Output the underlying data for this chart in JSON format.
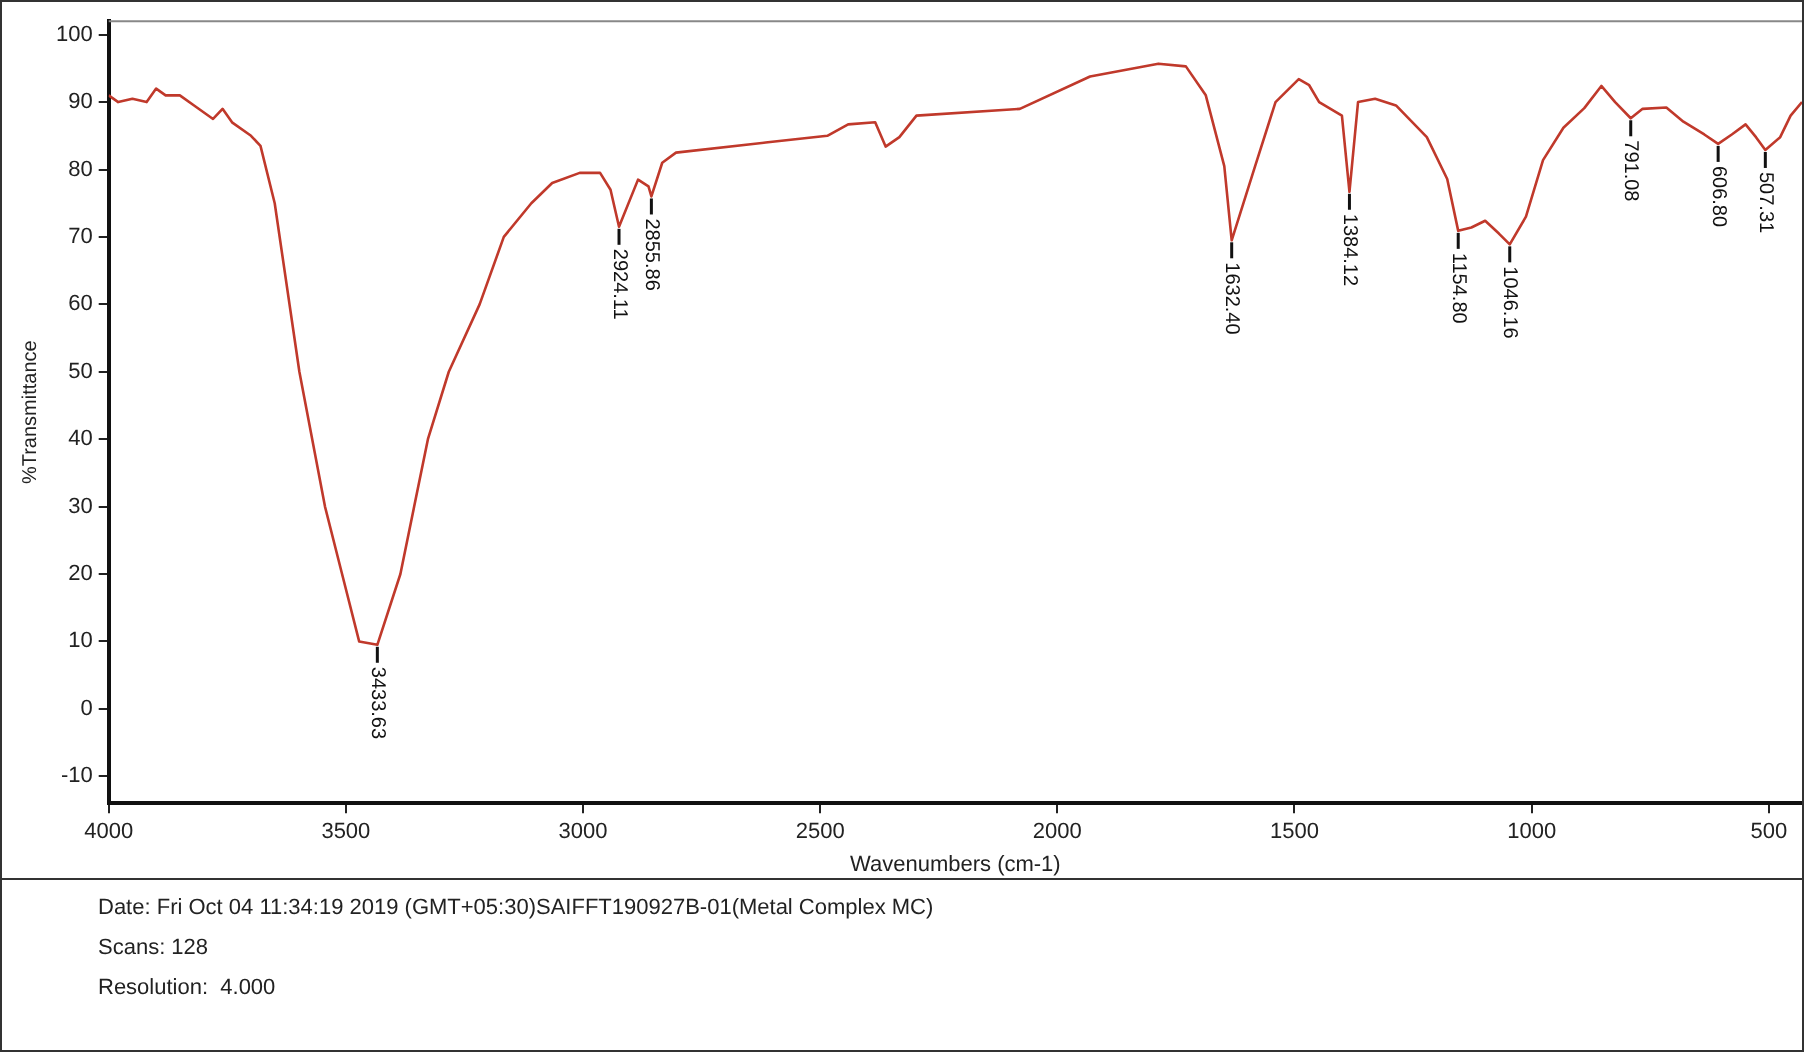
{
  "chart_data": {
    "type": "line",
    "xlabel": "Wavenumbers (cm-1)",
    "ylabel": "%Transmittance",
    "xlim": [
      4000,
      430
    ],
    "xticks": [
      4000,
      3500,
      3000,
      2500,
      2000,
      1500,
      1000,
      500
    ],
    "ylim": [
      -14,
      102
    ],
    "yticks": [
      -10,
      0,
      10,
      20,
      30,
      40,
      50,
      60,
      70,
      80,
      90,
      100
    ],
    "grid": false,
    "legend": false,
    "marker": "none",
    "line_style": "solid",
    "series": [
      {
        "color": "#c0392b",
        "x": [
          4000,
          3980,
          3950,
          3920,
          3900,
          3880,
          3850,
          3820,
          3780,
          3760,
          3740,
          3700,
          3680,
          3650,
          3598,
          3544,
          3508,
          3472,
          3433.63,
          3385,
          3356,
          3327,
          3283,
          3218,
          3167,
          3109,
          3065,
          3007,
          2964,
          2942,
          2924.11,
          2884,
          2862,
          2855.86,
          2833,
          2804,
          2615,
          2485,
          2441,
          2384,
          2362,
          2333,
          2297,
          2079,
          1931,
          1787,
          1729,
          1687,
          1648,
          1632.4,
          1583,
          1540,
          1491,
          1469,
          1448,
          1400,
          1384.12,
          1366,
          1330,
          1286,
          1221,
          1178,
          1154.8,
          1127,
          1098,
          1069,
          1046.16,
          1012,
          976,
          933,
          889,
          853,
          824,
          791.08,
          766,
          716,
          680,
          636,
          606.8,
          578,
          549,
          527,
          507.31,
          476,
          454,
          430
        ],
        "values": [
          91,
          90,
          90.5,
          90,
          92,
          91,
          91,
          89.5,
          87.5,
          89,
          87,
          85,
          83.5,
          75,
          50,
          30,
          20,
          10,
          9.5,
          20,
          30,
          40,
          50,
          60,
          70,
          75,
          78,
          79.5,
          79.5,
          77,
          71.5,
          78.5,
          77.5,
          76,
          81,
          82.5,
          84,
          85,
          86.7,
          87,
          83.4,
          84.8,
          88,
          89,
          93.8,
          95.7,
          95.3,
          91,
          80.5,
          69.5,
          80.5,
          90,
          93.4,
          92.5,
          90,
          88,
          76.7,
          90,
          90.5,
          89.5,
          84.8,
          78.6,
          70.9,
          71.4,
          72.4,
          70.5,
          68.9,
          73,
          81.4,
          86.2,
          89.1,
          92.4,
          90,
          87.6,
          89,
          89.2,
          87.1,
          85.2,
          83.8,
          85.2,
          86.7,
          84.8,
          82.9,
          84.8,
          88,
          90
        ]
      }
    ],
    "annotations": [
      {
        "text": "3433.63",
        "x": 3433.63,
        "y": 9.5
      },
      {
        "text": "2924.11",
        "x": 2924.11,
        "y": 71.5
      },
      {
        "text": "2855.86",
        "x": 2855.86,
        "y": 76
      },
      {
        "text": "1632.40",
        "x": 1632.4,
        "y": 69.5
      },
      {
        "text": "1384.12",
        "x": 1384.12,
        "y": 76.7
      },
      {
        "text": "1154.80",
        "x": 1154.8,
        "y": 70.9
      },
      {
        "text": "1046.16",
        "x": 1046.16,
        "y": 68.9
      },
      {
        "text": "791.08",
        "x": 791.08,
        "y": 87.6
      },
      {
        "text": "606.80",
        "x": 606.8,
        "y": 83.8
      },
      {
        "text": "507.31",
        "x": 507.31,
        "y": 82.9
      },
      "Date: Fri Oct 04 11:34:19 2019 (GMT+05:30)SAIFFT190927B-01(Metal Complex MC)",
      "Scans: 128",
      "Resolution:  4.000"
    ]
  }
}
